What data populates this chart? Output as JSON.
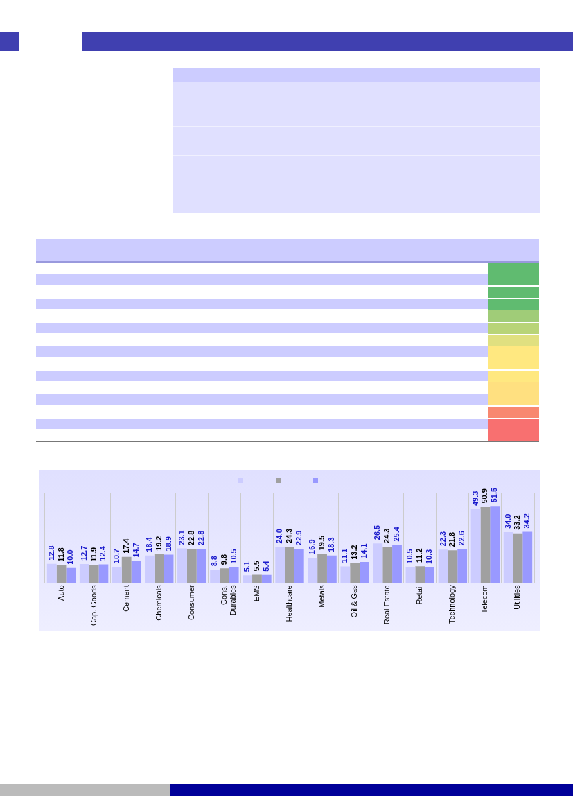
{
  "chart_data": {
    "type": "bar",
    "categories": [
      "Auto",
      "Cap. Goods",
      "Cement",
      "Chemicals",
      "Consumer",
      "Cons. Durables",
      "EMS",
      "Healthcare",
      "Metals",
      "Oil & Gas",
      "Real Estate",
      "Retail",
      "Technology",
      "Telecom",
      "Utilities"
    ],
    "series": [
      {
        "color": "#ccccff",
        "values": [
          12.8,
          12.7,
          10.7,
          18.4,
          23.1,
          8.8,
          5.1,
          24.0,
          16.9,
          11.1,
          26.5,
          10.5,
          22.3,
          49.3,
          34.0
        ],
        "value_labels": [
          "12.8",
          "12.7",
          "10.7",
          "18.4",
          "23.1",
          "8.8",
          "5.1",
          "24.0",
          "16.9",
          "11.1",
          "26.5",
          "10.5",
          "22.3",
          "49.3",
          "34.0"
        ]
      },
      {
        "color": "#a0a0a0",
        "values": [
          11.8,
          11.9,
          17.4,
          19.2,
          22.8,
          9.8,
          5.5,
          24.3,
          19.5,
          13.2,
          24.3,
          11.2,
          21.8,
          50.9,
          33.2
        ],
        "value_labels": [
          "11.8",
          "11.9",
          "17.4",
          "19.2",
          "22.8",
          "9.8",
          "5.5",
          "24.3",
          "19.5",
          "13.2",
          "24.3",
          "11.2",
          "21.8",
          "50.9",
          "33.2"
        ]
      },
      {
        "color": "#9999ff",
        "values": [
          10.0,
          12.4,
          14.7,
          18.9,
          22.8,
          10.5,
          5.4,
          22.9,
          18.3,
          14.1,
          25.4,
          10.3,
          22.6,
          51.5,
          34.2
        ],
        "value_labels": [
          "10.0",
          "12.4",
          "14.7",
          "18.9",
          "22.8",
          "10.5",
          "5.4",
          "22.9",
          "18.3",
          "14.1",
          "25.4",
          "10.3",
          "22.6",
          "51.5",
          "34.2"
        ]
      }
    ],
    "grid": "x",
    "tick_labels": "x"
  }
}
